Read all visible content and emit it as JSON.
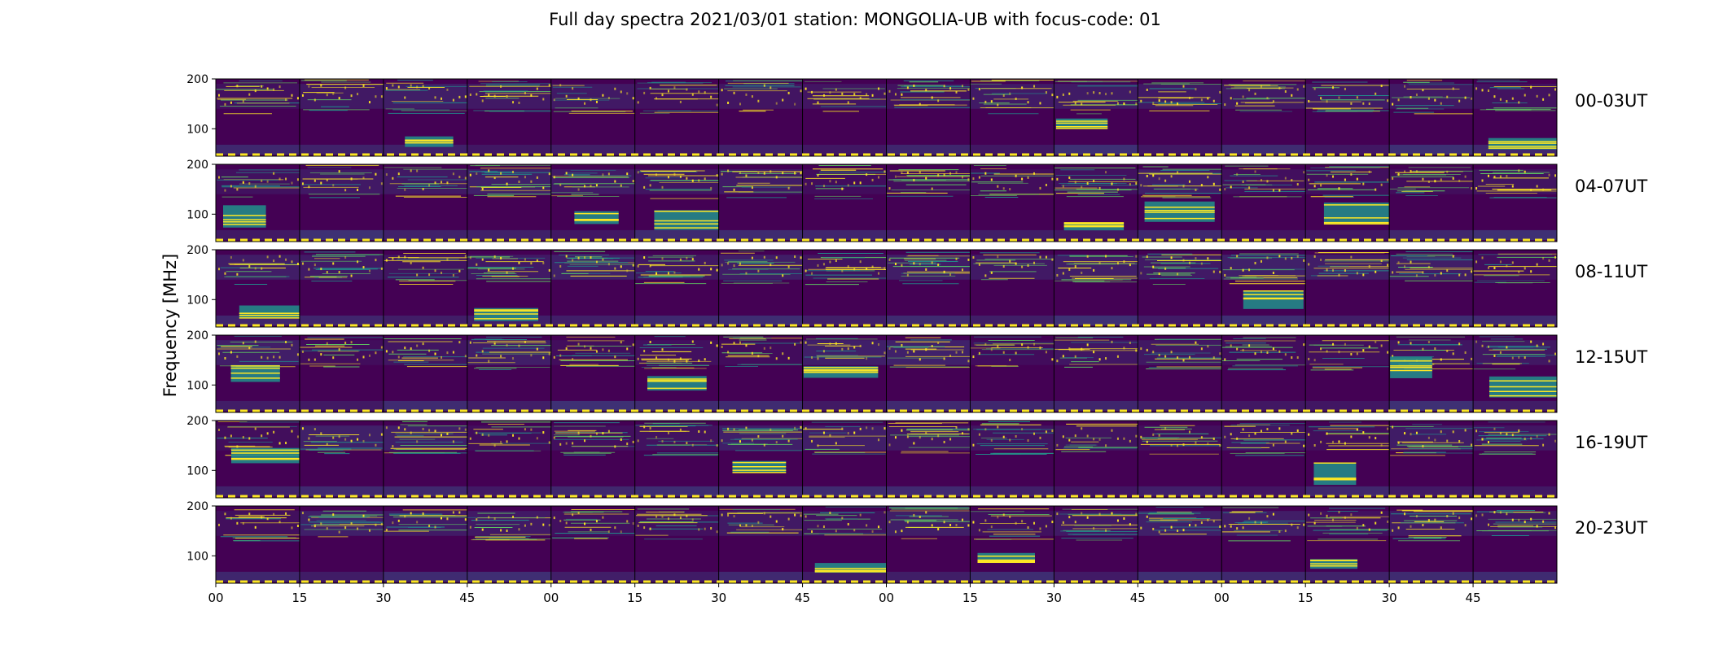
{
  "title": "Full day spectra 2021/03/01 station: MONGOLIA-UB with focus-code: 01",
  "chart_data": {
    "type": "heatmap",
    "title": "Full day spectra 2021/03/01 station: MONGOLIA-UB with focus-code: 01",
    "ylabel": "Frequency [MHz]",
    "xlabel": "",
    "ylim": [
      45,
      200
    ],
    "yticks": [
      100,
      200
    ],
    "x_tick_labels": [
      "00",
      "15",
      "30",
      "45",
      "00",
      "15",
      "30",
      "45",
      "00",
      "15",
      "30",
      "45",
      "00",
      "15",
      "30",
      "45"
    ],
    "panels_per_row": 16,
    "panel_minutes": 15,
    "grid": false,
    "colormap": [
      "#440154",
      "#3b528b",
      "#21918c",
      "#5ec962",
      "#fde725"
    ],
    "rows": [
      {
        "label": "00-03UT",
        "hours": [
          0,
          3
        ],
        "bright_panels": [
          2,
          10,
          15
        ]
      },
      {
        "label": "04-07UT",
        "hours": [
          4,
          7
        ],
        "bright_panels": [
          0,
          4,
          5,
          10,
          11,
          13
        ]
      },
      {
        "label": "08-11UT",
        "hours": [
          8,
          11
        ],
        "bright_panels": [
          0,
          3,
          12
        ]
      },
      {
        "label": "12-15UT",
        "hours": [
          12,
          15
        ],
        "bright_panels": [
          0,
          5,
          7,
          14,
          15
        ]
      },
      {
        "label": "16-19UT",
        "hours": [
          16,
          19
        ],
        "bright_panels": [
          0,
          6,
          13
        ]
      },
      {
        "label": "20-23UT",
        "hours": [
          20,
          23
        ],
        "bright_panels": [
          7,
          9,
          13
        ]
      }
    ]
  }
}
